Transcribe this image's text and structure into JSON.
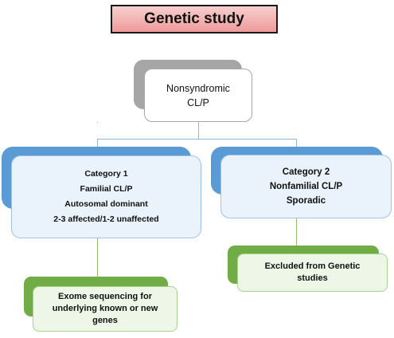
{
  "title": "Genetic study",
  "nonsyndromic": {
    "line1": "Nonsyndromic",
    "line2": "CL/P"
  },
  "category1": {
    "heading": "Category 1",
    "line1": "Familial CL/P",
    "line2": "Autosomal dominant",
    "line3": "2-3 affected/1-2 unaffected"
  },
  "category2": {
    "heading": "Category 2",
    "line1": "Nonfamilial CL/P",
    "line2": "Sporadic"
  },
  "excluded": {
    "line1": "Excluded from Genetic",
    "line2": "studies"
  },
  "exome": {
    "line1": "Exome sequencing for",
    "line2": "underlying known or new",
    "line3": "genes"
  },
  "colors": {
    "title_fill": "#ef9a9a",
    "gray_accent": "#a6a6a6",
    "blue_accent": "#5b9bd5",
    "blue_fill": "#eaf2fb",
    "green_accent": "#70ad47",
    "green_fill": "#eef6e8"
  }
}
